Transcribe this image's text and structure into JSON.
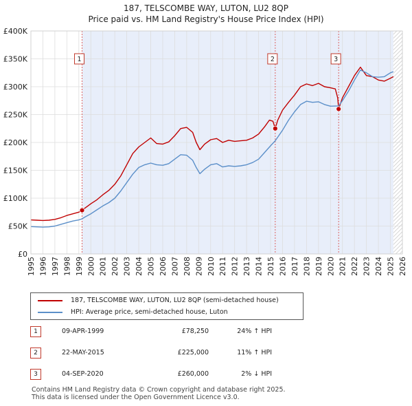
{
  "chart_data": {
    "type": "line",
    "title": "187, TELSCOMBE WAY, LUTON, LU2 8QP",
    "subtitle": "Price paid vs. HM Land Registry's House Price Index (HPI)",
    "x_range": [
      1995,
      2026
    ],
    "ylim": [
      0,
      400000
    ],
    "y_ticks": [
      0,
      50000,
      100000,
      150000,
      200000,
      250000,
      300000,
      350000,
      400000
    ],
    "y_tick_labels": [
      "£0",
      "£50K",
      "£100K",
      "£150K",
      "£200K",
      "£250K",
      "£300K",
      "£350K",
      "£400K"
    ],
    "x_ticks": [
      1995,
      1996,
      1997,
      1998,
      1999,
      2000,
      2001,
      2002,
      2003,
      2004,
      2005,
      2006,
      2007,
      2008,
      2009,
      2010,
      2011,
      2012,
      2013,
      2014,
      2015,
      2016,
      2017,
      2018,
      2019,
      2020,
      2021,
      2022,
      2023,
      2024,
      2025,
      2026
    ],
    "x_tick_labels": [
      "1995",
      "1996",
      "1997",
      "1998",
      "1999",
      "2000",
      "2001",
      "2002",
      "2003",
      "2004",
      "2005",
      "2006",
      "2007",
      "2008",
      "2009",
      "2010",
      "2011",
      "2012",
      "2013",
      "2014",
      "2015",
      "2016",
      "2017",
      "2018",
      "2019",
      "2020",
      "2021",
      "2022",
      "2023",
      "2024",
      "2025",
      "2026"
    ],
    "shaded_period": [
      1999.27,
      2025.25
    ],
    "hatched_from": 2025.25,
    "series": [
      {
        "name": "187, TELSCOMBE WAY, LUTON, LU2 8QP (semi-detached house)",
        "color": "#c00000",
        "points": [
          [
            1995.0,
            61000
          ],
          [
            1995.5,
            60500
          ],
          [
            1996.0,
            60000
          ],
          [
            1996.5,
            60500
          ],
          [
            1997.0,
            62000
          ],
          [
            1997.5,
            65000
          ],
          [
            1998.0,
            69000
          ],
          [
            1998.5,
            72000
          ],
          [
            1999.0,
            75000
          ],
          [
            1999.27,
            78250
          ],
          [
            1999.5,
            82000
          ],
          [
            2000.0,
            90000
          ],
          [
            2000.5,
            97000
          ],
          [
            2001.0,
            106000
          ],
          [
            2001.5,
            114000
          ],
          [
            2002.0,
            125000
          ],
          [
            2002.5,
            140000
          ],
          [
            2003.0,
            160000
          ],
          [
            2003.5,
            180000
          ],
          [
            2004.0,
            192000
          ],
          [
            2004.5,
            200000
          ],
          [
            2005.0,
            208000
          ],
          [
            2005.5,
            198000
          ],
          [
            2006.0,
            197000
          ],
          [
            2006.5,
            201000
          ],
          [
            2007.0,
            212000
          ],
          [
            2007.5,
            225000
          ],
          [
            2008.0,
            227000
          ],
          [
            2008.5,
            218000
          ],
          [
            2008.8,
            200000
          ],
          [
            2009.1,
            187000
          ],
          [
            2009.5,
            197000
          ],
          [
            2010.0,
            205000
          ],
          [
            2010.5,
            207000
          ],
          [
            2011.0,
            200000
          ],
          [
            2011.5,
            204000
          ],
          [
            2012.0,
            202000
          ],
          [
            2012.5,
            203000
          ],
          [
            2013.0,
            204000
          ],
          [
            2013.5,
            208000
          ],
          [
            2014.0,
            215000
          ],
          [
            2014.5,
            228000
          ],
          [
            2014.9,
            240000
          ],
          [
            2015.2,
            238000
          ],
          [
            2015.39,
            225000
          ],
          [
            2015.6,
            240000
          ],
          [
            2016.0,
            258000
          ],
          [
            2016.5,
            272000
          ],
          [
            2017.0,
            285000
          ],
          [
            2017.5,
            300000
          ],
          [
            2018.0,
            305000
          ],
          [
            2018.5,
            302000
          ],
          [
            2019.0,
            306000
          ],
          [
            2019.5,
            300000
          ],
          [
            2020.0,
            298000
          ],
          [
            2020.4,
            296000
          ],
          [
            2020.6,
            280000
          ],
          [
            2020.68,
            260000
          ],
          [
            2021.0,
            280000
          ],
          [
            2021.5,
            300000
          ],
          [
            2022.0,
            320000
          ],
          [
            2022.5,
            335000
          ],
          [
            2023.0,
            320000
          ],
          [
            2023.5,
            318000
          ],
          [
            2024.0,
            312000
          ],
          [
            2024.5,
            310000
          ],
          [
            2025.0,
            315000
          ],
          [
            2025.25,
            318000
          ]
        ]
      },
      {
        "name": "HPI: Average price, semi-detached house, Luton",
        "color": "#5b8fc9",
        "points": [
          [
            1995.0,
            49000
          ],
          [
            1995.5,
            48500
          ],
          [
            1996.0,
            48000
          ],
          [
            1996.5,
            48500
          ],
          [
            1997.0,
            50000
          ],
          [
            1997.5,
            53000
          ],
          [
            1998.0,
            56000
          ],
          [
            1998.5,
            59000
          ],
          [
            1999.0,
            61000
          ],
          [
            1999.27,
            63000
          ],
          [
            1999.5,
            66000
          ],
          [
            2000.0,
            72000
          ],
          [
            2000.5,
            79000
          ],
          [
            2001.0,
            86000
          ],
          [
            2001.5,
            92000
          ],
          [
            2002.0,
            100000
          ],
          [
            2002.5,
            113000
          ],
          [
            2003.0,
            128000
          ],
          [
            2003.5,
            143000
          ],
          [
            2004.0,
            155000
          ],
          [
            2004.5,
            160000
          ],
          [
            2005.0,
            163000
          ],
          [
            2005.5,
            160000
          ],
          [
            2006.0,
            159000
          ],
          [
            2006.5,
            162000
          ],
          [
            2007.0,
            170000
          ],
          [
            2007.5,
            178000
          ],
          [
            2008.0,
            177000
          ],
          [
            2008.5,
            168000
          ],
          [
            2008.8,
            155000
          ],
          [
            2009.1,
            144000
          ],
          [
            2009.5,
            152000
          ],
          [
            2010.0,
            160000
          ],
          [
            2010.5,
            162000
          ],
          [
            2011.0,
            156000
          ],
          [
            2011.5,
            158000
          ],
          [
            2012.0,
            157000
          ],
          [
            2012.5,
            158000
          ],
          [
            2013.0,
            160000
          ],
          [
            2013.5,
            164000
          ],
          [
            2014.0,
            170000
          ],
          [
            2014.5,
            182000
          ],
          [
            2015.0,
            194000
          ],
          [
            2015.39,
            203000
          ],
          [
            2016.0,
            222000
          ],
          [
            2016.5,
            240000
          ],
          [
            2017.0,
            255000
          ],
          [
            2017.5,
            268000
          ],
          [
            2018.0,
            274000
          ],
          [
            2018.5,
            272000
          ],
          [
            2019.0,
            273000
          ],
          [
            2019.5,
            268000
          ],
          [
            2020.0,
            265000
          ],
          [
            2020.68,
            265500
          ],
          [
            2021.0,
            275000
          ],
          [
            2021.5,
            292000
          ],
          [
            2022.0,
            312000
          ],
          [
            2022.5,
            330000
          ],
          [
            2023.0,
            325000
          ],
          [
            2023.5,
            318000
          ],
          [
            2024.0,
            317000
          ],
          [
            2024.5,
            318000
          ],
          [
            2025.0,
            325000
          ],
          [
            2025.25,
            327000
          ]
        ]
      }
    ],
    "sales": [
      {
        "id": "1",
        "x": 1999.27,
        "price": 78250
      },
      {
        "id": "2",
        "x": 2015.39,
        "price": 225000
      },
      {
        "id": "3",
        "x": 2020.68,
        "price": 260000
      }
    ]
  },
  "legend": {
    "property_label": "187, TELSCOMBE WAY, LUTON, LU2 8QP (semi-detached house)",
    "hpi_label": "HPI: Average price, semi-detached house, Luton"
  },
  "transactions": [
    {
      "id": "1",
      "date": "09-APR-1999",
      "price": "£78,250",
      "hpi": "24% ↑ HPI"
    },
    {
      "id": "2",
      "date": "22-MAY-2015",
      "price": "£225,000",
      "hpi": "11% ↑ HPI"
    },
    {
      "id": "3",
      "date": "04-SEP-2020",
      "price": "£260,000",
      "hpi": "2% ↓ HPI"
    }
  ],
  "footer": {
    "line1": "Contains HM Land Registry data © Crown copyright and database right 2025.",
    "line2": "This data is licensed under the Open Government Licence v3.0."
  },
  "colors": {
    "property": "#c00000",
    "hpi": "#5b8fc9",
    "shade": "#e8eefa",
    "grid": "#ffffff"
  }
}
